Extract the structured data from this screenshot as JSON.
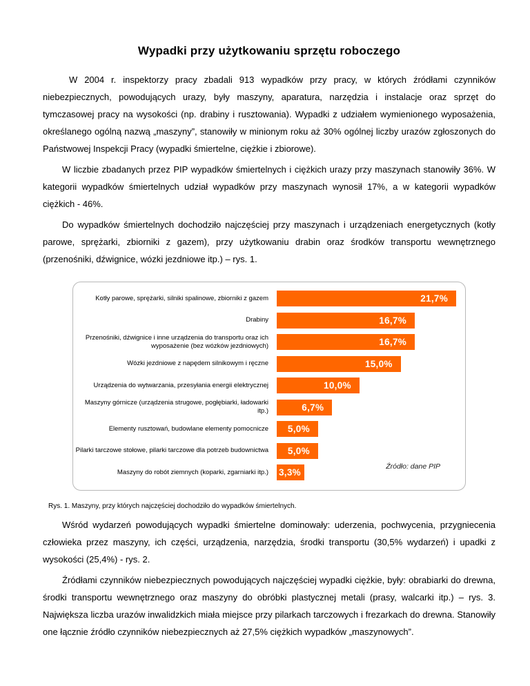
{
  "doc": {
    "title": "Wypadki przy użytkowaniu sprzętu roboczego",
    "paragraphs": [
      "W 2004 r. inspektorzy pracy zbadali 913 wypadków przy pracy, w których źródłami czynników niebezpiecznych, powodujących urazy, były maszyny, aparatura, narzędzia i instalacje oraz sprzęt do tymczasowej pracy na wysokości (np. drabiny i rusztowania). Wypadki z udziałem wymienionego wyposażenia, określanego ogólną nazwą „maszyny”, stanowiły w minionym roku aż 30% ogólnej liczby urazów zgłoszonych do Państwowej Inspekcji Pracy (wypadki śmiertelne, ciężkie i zbiorowe).",
      "W liczbie zbadanych przez PIP wypadków śmiertelnych i ciężkich urazy przy maszynach stanowiły 36%. W kategorii wypadków śmiertelnych udział wypadków przy maszynach wynosił 17%, a w kategorii wypadków ciężkich - 46%.",
      "Do wypadków śmiertelnych dochodziło najczęściej przy maszynach i urządzeniach energetycznych (kotły parowe, sprężarki, zbiorniki z gazem), przy użytkowaniu drabin oraz środków transportu wewnętrznego (przenośniki, dźwignice, wózki jezdniowe itp.) – rys. 1."
    ],
    "figure_caption": "Rys. 1. Maszyny, przy których najczęściej dochodziło do wypadków śmiertelnych.",
    "paragraphs_after": [
      "Wśród wydarzeń powodujących wypadki śmiertelne dominowały: uderzenia, pochwycenia, przygniecenia człowieka przez maszyny, ich części, urządzenia, narzędzia, środki transportu (30,5% wydarzeń) i upadki z wysokości (25,4%) - rys. 2.",
      "Źródłami czynników niebezpiecznych powodujących najczęściej wypadki ciężkie, były: obrabiarki do drewna, środki transportu wewnętrznego oraz maszyny do obróbki plastycznej metali (prasy, walcarki itp.) – rys. 3. Największa liczba urazów inwalidzkich miała miejsce przy pilarkach tarczowych i frezarkach do drewna. Stanowiły one łącznie źródło czynników niebezpiecznych aż 27,5% ciężkich wypadków „maszynowych”."
    ]
  },
  "chart_data": {
    "type": "bar",
    "orientation": "horizontal",
    "title": "",
    "categories": [
      "Kotły parowe, sprężarki, silniki spalinowe, zbiorniki z gazem",
      "Drabiny",
      "Przenośniki, dźwignice i inne urządzenia do transportu oraz ich wyposażenie (bez wózków jezdniowych)",
      "Wózki jezdniowe z napędem silnikowym i ręczne",
      "Urządzenia do wytwarzania, przesyłania energii elektrycznej",
      "Maszyny górnicze (urządzenia strugowe, pogłębiarki, ładowarki itp.)",
      "Elementy rusztowań, budowlane elementy pomocnicze",
      "Pilarki tarczowe stołowe, pilarki tarczowe dla potrzeb budownictwa",
      "Maszyny do robót ziemnych (koparki, zgarniarki itp.)"
    ],
    "values": [
      21.7,
      16.7,
      16.7,
      15.0,
      10.0,
      6.7,
      5.0,
      5.0,
      3.3
    ],
    "value_labels": [
      "21,7%",
      "16,7%",
      "16,7%",
      "15,0%",
      "10,0%",
      "6,7%",
      "5,0%",
      "5,0%",
      "3,3%"
    ],
    "xlim": [
      0,
      21.7
    ],
    "grid": false,
    "legend": false,
    "bar_color": "#FF6600",
    "value_label_color": "#FFFFFF",
    "source_note": "Źródło: dane PIP"
  }
}
